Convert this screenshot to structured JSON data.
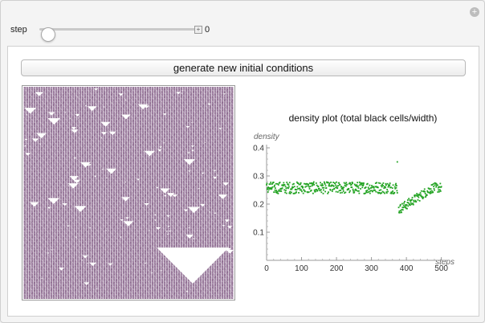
{
  "controls": {
    "step_label": "step",
    "step_value": "0",
    "step_fraction": 0.0
  },
  "button": {
    "generate_label": "generate new initial conditions"
  },
  "icons": {
    "corner": "plus-circle-icon",
    "slider_expand": "plus-box-icon"
  },
  "colors": {
    "points": "#22a322",
    "ca_cells": "#a98cac"
  },
  "chart_data": {
    "type": "scatter",
    "title": "density plot (total black cells/width)",
    "ylabel": "density",
    "xlabel": "steps",
    "xlim": [
      0,
      510
    ],
    "ylim": [
      0,
      0.4
    ],
    "xticks": [
      "0",
      "100",
      "200",
      "300",
      "400",
      "500"
    ],
    "yticks": [
      "0.1",
      "0.2",
      "0.3",
      "0.4"
    ],
    "series": [
      {
        "name": "density",
        "segments": [
          {
            "x_start": 0,
            "x_end": 374,
            "mean": 0.258,
            "spread": 0.016
          },
          {
            "x_start": 378,
            "x_end": 500,
            "start_mean": 0.18,
            "end_mean": 0.258,
            "spread": 0.013
          }
        ],
        "outliers": [
          [
            374,
            0.35
          ]
        ]
      }
    ]
  }
}
